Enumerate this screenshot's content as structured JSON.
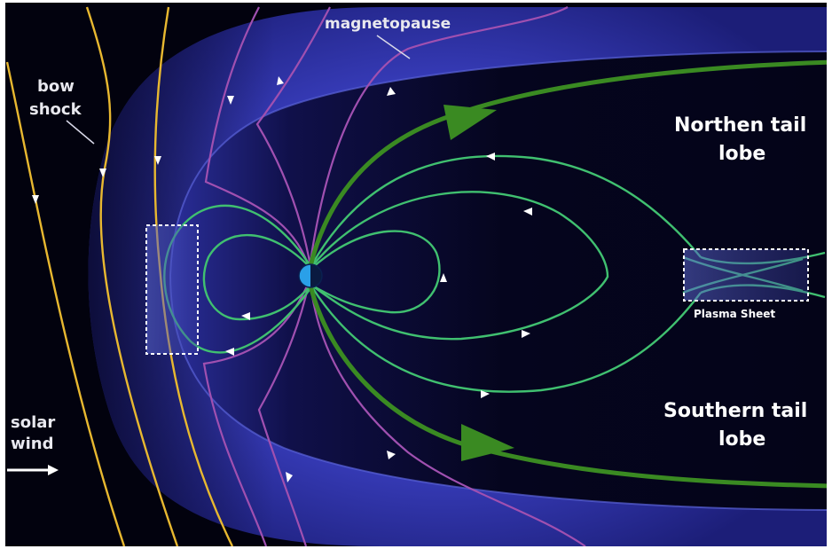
{
  "labels": {
    "magnetopause": "magnetopause",
    "bow_shock_line1": "bow",
    "bow_shock_line2": "shock",
    "northern_line1": "Northen tail",
    "northern_line2": "lobe",
    "southern_line1": "Southern tail",
    "southern_line2": "lobe",
    "plasma_sheet": "Plasma Sheet",
    "solar_wind_line1": "solar",
    "solar_wind_line2": "wind"
  },
  "colors": {
    "space_background": "#02020e",
    "magnetosheath": "#3a3ec0",
    "magnetosphere": "#06062a",
    "bow_shock_lines": "#e8b830",
    "imf_lines": "#a050b0",
    "closed_field_lines": "#40c070",
    "lobe_field_lines": "#3a8a22",
    "earth_day": "#2aa0e8",
    "earth_night": "#0a1a40",
    "box_outline": "#ffffff",
    "arrow": "#ffffff"
  }
}
